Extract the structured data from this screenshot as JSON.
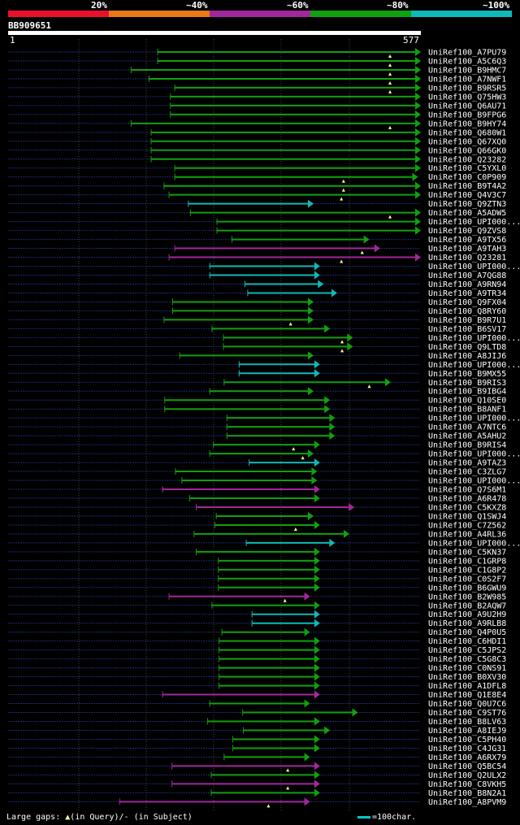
{
  "legend": {
    "labels": [
      "20%",
      "~40%",
      "~60%",
      "~80%",
      "~100%"
    ],
    "colors": [
      "#e8102c",
      "#e87818",
      "#a0289c",
      "#10a010",
      "#10b8b8"
    ]
  },
  "query": {
    "id": "BB909651",
    "start": "1",
    "end": "577"
  },
  "footer": {
    "gaps_text": "Large gaps:",
    "in_query": "(in Query)",
    "in_subject": "/- (in Subject)",
    "scale_text": "=100char."
  },
  "chart_data": {
    "type": "alignment",
    "query_length": 577,
    "class_colors": {
      "p40": "#e87818",
      "p60": "#a0289c",
      "p80": "#10a010",
      "p100": "#10b8b8"
    },
    "hits": [
      {
        "name": "UniRef100_A7PU79",
        "s": 210,
        "e": 577,
        "c": "p80",
        "g": [
          535
        ]
      },
      {
        "name": "UniRef100_A5C6Q3",
        "s": 210,
        "e": 577,
        "c": "p80",
        "g": [
          535
        ]
      },
      {
        "name": "UniRef100_B9HMC7",
        "s": 173,
        "e": 577,
        "c": "p80",
        "g": [
          535
        ]
      },
      {
        "name": "UniRef100_A7NWF1",
        "s": 198,
        "e": 577,
        "c": "p80",
        "g": [
          535
        ]
      },
      {
        "name": "UniRef100_B9RSR5",
        "s": 234,
        "e": 577,
        "c": "p80",
        "g": [
          535
        ]
      },
      {
        "name": "UniRef100_Q75HW3",
        "s": 228,
        "e": 577,
        "c": "p80",
        "g": []
      },
      {
        "name": "UniRef100_Q6AU71",
        "s": 228,
        "e": 577,
        "c": "p80",
        "g": []
      },
      {
        "name": "UniRef100_B9FPG6",
        "s": 228,
        "e": 577,
        "c": "p80",
        "g": []
      },
      {
        "name": "UniRef100_B9HY74",
        "s": 173,
        "e": 577,
        "c": "p80",
        "g": [
          535
        ]
      },
      {
        "name": "UniRef100_Q680W1",
        "s": 201,
        "e": 577,
        "c": "p80",
        "g": []
      },
      {
        "name": "UniRef100_Q67XQ0",
        "s": 201,
        "e": 577,
        "c": "p80",
        "g": []
      },
      {
        "name": "UniRef100_Q66GK0",
        "s": 201,
        "e": 577,
        "c": "p80",
        "g": []
      },
      {
        "name": "UniRef100_Q23282",
        "s": 201,
        "e": 577,
        "c": "p80",
        "g": []
      },
      {
        "name": "UniRef100_C5YXL0",
        "s": 234,
        "e": 577,
        "c": "p80",
        "g": []
      },
      {
        "name": "UniRef100_C0P909",
        "s": 234,
        "e": 573,
        "c": "p80",
        "g": [
          470
        ]
      },
      {
        "name": "UniRef100_B9T4A2",
        "s": 219,
        "e": 577,
        "c": "p80",
        "g": [
          470
        ]
      },
      {
        "name": "UniRef100_Q4V3C7",
        "s": 226,
        "e": 577,
        "c": "p80",
        "g": [
          467
        ]
      },
      {
        "name": "UniRef100_Q9ZTN3",
        "s": 253,
        "e": 427,
        "c": "p100",
        "g": []
      },
      {
        "name": "UniRef100_A5ADW5",
        "s": 256,
        "e": 577,
        "c": "p80",
        "g": [
          535
        ]
      },
      {
        "name": "UniRef100_UPI000...",
        "s": 293,
        "e": 577,
        "c": "p80",
        "g": []
      },
      {
        "name": "UniRef100_Q9ZVS8",
        "s": 293,
        "e": 577,
        "c": "p80",
        "g": []
      },
      {
        "name": "UniRef100_A9TX56",
        "s": 314,
        "e": 505,
        "c": "p80",
        "g": []
      },
      {
        "name": "UniRef100_A9TAH3",
        "s": 234,
        "e": 520,
        "c": "p60",
        "g": [
          496
        ]
      },
      {
        "name": "UniRef100_Q23281",
        "s": 226,
        "e": 577,
        "c": "p60",
        "g": [
          467
        ]
      },
      {
        "name": "UniRef100_UPI000...",
        "s": 283,
        "e": 436,
        "c": "p100",
        "g": []
      },
      {
        "name": "UniRef100_A7QG88",
        "s": 283,
        "e": 436,
        "c": "p100",
        "g": []
      },
      {
        "name": "UniRef100_A9RN94",
        "s": 332,
        "e": 441,
        "c": "p100",
        "g": []
      },
      {
        "name": "UniRef100_A9TR34",
        "s": 336,
        "e": 460,
        "c": "p100",
        "g": []
      },
      {
        "name": "UniRef100_Q9FX04",
        "s": 231,
        "e": 427,
        "c": "p80",
        "g": []
      },
      {
        "name": "UniRef100_Q8RY60",
        "s": 231,
        "e": 427,
        "c": "p80",
        "g": []
      },
      {
        "name": "UniRef100_B9R7U1",
        "s": 219,
        "e": 427,
        "c": "p80",
        "g": [
          396
        ]
      },
      {
        "name": "UniRef100_B6SV17",
        "s": 286,
        "e": 450,
        "c": "p80",
        "g": []
      },
      {
        "name": "UniRef100_UPI000...",
        "s": 302,
        "e": 482,
        "c": "p80",
        "g": [
          468
        ]
      },
      {
        "name": "UniRef100_Q9LTD8",
        "s": 302,
        "e": 482,
        "c": "p80",
        "g": [
          468
        ]
      },
      {
        "name": "UniRef100_A8JIJ6",
        "s": 241,
        "e": 427,
        "c": "p80",
        "g": []
      },
      {
        "name": "UniRef100_UPI000...",
        "s": 324,
        "e": 436,
        "c": "p100",
        "g": []
      },
      {
        "name": "UniRef100_B9MX55",
        "s": 324,
        "e": 436,
        "c": "p100",
        "g": []
      },
      {
        "name": "UniRef100_B9RIS3",
        "s": 303,
        "e": 535,
        "c": "p80",
        "g": [
          506
        ]
      },
      {
        "name": "UniRef100_B9IBG4",
        "s": 283,
        "e": 427,
        "c": "p80",
        "g": []
      },
      {
        "name": "UniRef100_Q10SE0",
        "s": 220,
        "e": 450,
        "c": "p80",
        "g": []
      },
      {
        "name": "UniRef100_B8ANF1",
        "s": 220,
        "e": 450,
        "c": "p80",
        "g": []
      },
      {
        "name": "UniRef100_UPI000...",
        "s": 307,
        "e": 457,
        "c": "p80",
        "g": []
      },
      {
        "name": "UniRef100_A7NTC6",
        "s": 307,
        "e": 457,
        "c": "p80",
        "g": []
      },
      {
        "name": "UniRef100_A5AHU2",
        "s": 307,
        "e": 457,
        "c": "p80",
        "g": []
      },
      {
        "name": "UniRef100_B9RIS4",
        "s": 288,
        "e": 436,
        "c": "p80",
        "g": [
          400
        ]
      },
      {
        "name": "UniRef100_UPI000...",
        "s": 283,
        "e": 427,
        "c": "p80",
        "g": [
          413
        ]
      },
      {
        "name": "UniRef100_A9TAZ3",
        "s": 338,
        "e": 436,
        "c": "p100",
        "g": []
      },
      {
        "name": "UniRef100_C3ZLG7",
        "s": 235,
        "e": 432,
        "c": "p80",
        "g": []
      },
      {
        "name": "UniRef100_UPI000...",
        "s": 244,
        "e": 432,
        "c": "p80",
        "g": []
      },
      {
        "name": "UniRef100_Q7S6M1",
        "s": 217,
        "e": 436,
        "c": "p60",
        "g": []
      },
      {
        "name": "UniRef100_A6R478",
        "s": 255,
        "e": 436,
        "c": "p80",
        "g": []
      },
      {
        "name": "UniRef100_C5KXZ8",
        "s": 264,
        "e": 484,
        "c": "p60",
        "g": []
      },
      {
        "name": "UniRef100_Q1SWJ4",
        "s": 292,
        "e": 427,
        "c": "p80",
        "g": []
      },
      {
        "name": "UniRef100_C7Z562",
        "s": 290,
        "e": 436,
        "c": "p80",
        "g": [
          403
        ]
      },
      {
        "name": "UniRef100_A4RL36",
        "s": 261,
        "e": 477,
        "c": "p80",
        "g": []
      },
      {
        "name": "UniRef100_UPI000...",
        "s": 334,
        "e": 457,
        "c": "p100",
        "g": []
      },
      {
        "name": "UniRef100_C5KN37",
        "s": 264,
        "e": 436,
        "c": "p80",
        "g": []
      },
      {
        "name": "UniRef100_C1GRP8",
        "s": 295,
        "e": 436,
        "c": "p80",
        "g": []
      },
      {
        "name": "UniRef100_C1G8P2",
        "s": 295,
        "e": 436,
        "c": "p80",
        "g": []
      },
      {
        "name": "UniRef100_C0S2F7",
        "s": 295,
        "e": 436,
        "c": "p80",
        "g": []
      },
      {
        "name": "UniRef100_B6GWU9",
        "s": 295,
        "e": 436,
        "c": "p80",
        "g": []
      },
      {
        "name": "UniRef100_B2W985",
        "s": 226,
        "e": 422,
        "c": "p60",
        "g": [
          388
        ]
      },
      {
        "name": "UniRef100_B2AQW7",
        "s": 286,
        "e": 436,
        "c": "p80",
        "g": []
      },
      {
        "name": "UniRef100_A9U2H9",
        "s": 342,
        "e": 436,
        "c": "p100",
        "g": []
      },
      {
        "name": "UniRef100_A9RLB8",
        "s": 342,
        "e": 436,
        "c": "p100",
        "g": []
      },
      {
        "name": "UniRef100_Q4P0U5",
        "s": 300,
        "e": 422,
        "c": "p80",
        "g": []
      },
      {
        "name": "UniRef100_C6HDI1",
        "s": 296,
        "e": 436,
        "c": "p80",
        "g": []
      },
      {
        "name": "UniRef100_C5JPS2",
        "s": 296,
        "e": 436,
        "c": "p80",
        "g": []
      },
      {
        "name": "UniRef100_C5G8C3",
        "s": 296,
        "e": 436,
        "c": "p80",
        "g": []
      },
      {
        "name": "UniRef100_C0NS91",
        "s": 296,
        "e": 436,
        "c": "p80",
        "g": []
      },
      {
        "name": "UniRef100_B0XV30",
        "s": 296,
        "e": 436,
        "c": "p80",
        "g": []
      },
      {
        "name": "UniRef100_A1DFL8",
        "s": 296,
        "e": 436,
        "c": "p80",
        "g": []
      },
      {
        "name": "UniRef100_Q1E8E4",
        "s": 217,
        "e": 436,
        "c": "p60",
        "g": []
      },
      {
        "name": "UniRef100_Q0U7C6",
        "s": 283,
        "e": 422,
        "c": "p80",
        "g": []
      },
      {
        "name": "UniRef100_C9ST76",
        "s": 329,
        "e": 489,
        "c": "p80",
        "g": []
      },
      {
        "name": "UniRef100_B8LV63",
        "s": 280,
        "e": 436,
        "c": "p80",
        "g": []
      },
      {
        "name": "UniRef100_A8IEJ9",
        "s": 330,
        "e": 450,
        "c": "p80",
        "g": []
      },
      {
        "name": "UniRef100_C5PH40",
        "s": 315,
        "e": 436,
        "c": "p80",
        "g": []
      },
      {
        "name": "UniRef100_C4JG31",
        "s": 315,
        "e": 436,
        "c": "p80",
        "g": []
      },
      {
        "name": "UniRef100_A6RX79",
        "s": 303,
        "e": 422,
        "c": "p80",
        "g": []
      },
      {
        "name": "UniRef100_Q5BC54",
        "s": 230,
        "e": 436,
        "c": "p60",
        "g": [
          392
        ]
      },
      {
        "name": "UniRef100_Q2ULX2",
        "s": 285,
        "e": 436,
        "c": "p80",
        "g": []
      },
      {
        "name": "UniRef100_C8VKH5",
        "s": 230,
        "e": 436,
        "c": "p60",
        "g": [
          392
        ]
      },
      {
        "name": "UniRef100_B8N2A1",
        "s": 285,
        "e": 436,
        "c": "p80",
        "g": []
      },
      {
        "name": "UniRef100_A8PVM9",
        "s": 157,
        "e": 422,
        "c": "p60",
        "g": [
          365
        ]
      }
    ]
  }
}
